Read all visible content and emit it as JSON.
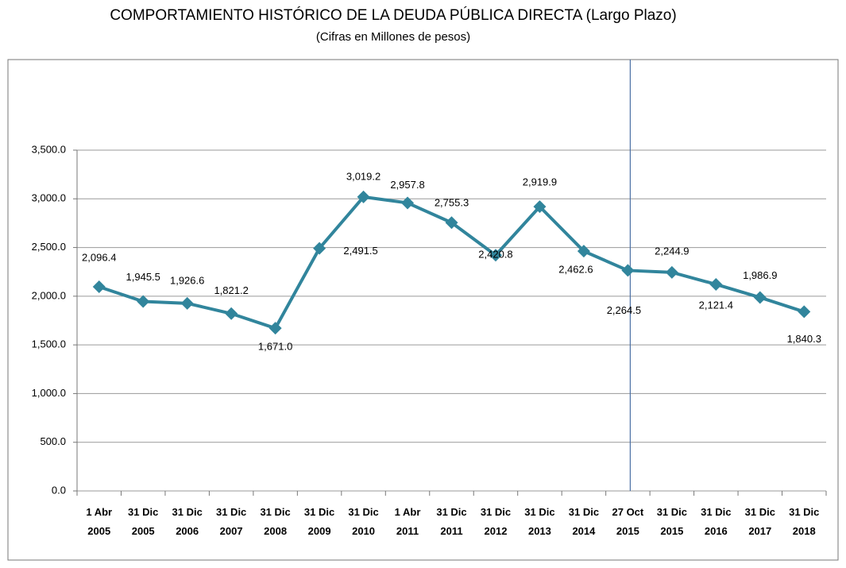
{
  "chart_data": {
    "type": "line",
    "title": "COMPORTAMIENTO  HISTÓRICO  DE LA DEUDA PÚBLICA DIRECTA (Largo Plazo)",
    "subtitle": "(Cifras en Millones de pesos)",
    "categories": [
      [
        "1 Abr",
        "2005"
      ],
      [
        "31 Dic",
        "2005"
      ],
      [
        "31 Dic",
        "2006"
      ],
      [
        "31 Dic",
        "2007"
      ],
      [
        "31 Dic",
        "2008"
      ],
      [
        "31 Dic",
        "2009"
      ],
      [
        "31 Dic",
        "2010"
      ],
      [
        "1 Abr",
        "2011"
      ],
      [
        "31 Dic",
        "2011"
      ],
      [
        "31 Dic",
        "2012"
      ],
      [
        "31 Dic",
        "2013"
      ],
      [
        "31 Dic",
        "2014"
      ],
      [
        "27 Oct",
        "2015"
      ],
      [
        "31 Dic",
        "2015"
      ],
      [
        "31 Dic",
        "2016"
      ],
      [
        "31 Dic",
        "2017"
      ],
      [
        "31 Dic",
        "2018"
      ]
    ],
    "values": [
      2096.4,
      1945.5,
      1926.6,
      1821.2,
      1671.0,
      2491.5,
      3019.2,
      2957.8,
      2755.3,
      2420.8,
      2919.9,
      2462.6,
      2264.5,
      2244.9,
      2121.4,
      1986.9,
      1840.3
    ],
    "value_labels": [
      "2,096.4",
      "1,945.5",
      "1,926.6",
      "1,821.2",
      "1,671.0",
      "2,491.5",
      "3,019.2",
      "2,957.8",
      "2,755.3",
      "2,420.8",
      "2,919.9",
      "2,462.6",
      "2,264.5",
      "2,244.9",
      "2,121.4",
      "1,986.9",
      "1,840.3"
    ],
    "color": "#31859c",
    "ylim": [
      0,
      3500
    ],
    "yticks": [
      {
        "value": 0,
        "label": "0.0"
      },
      {
        "value": 500,
        "label": "500.0"
      },
      {
        "value": 1000,
        "label": "1,000.0"
      },
      {
        "value": 1500,
        "label": "1,500.0"
      },
      {
        "value": 2000,
        "label": "2,000.0"
      },
      {
        "value": 2500,
        "label": "2,500.0"
      },
      {
        "value": 3000,
        "label": "3,000.0"
      },
      {
        "value": 3500,
        "label": "3,500.0"
      }
    ],
    "grid": true
  }
}
